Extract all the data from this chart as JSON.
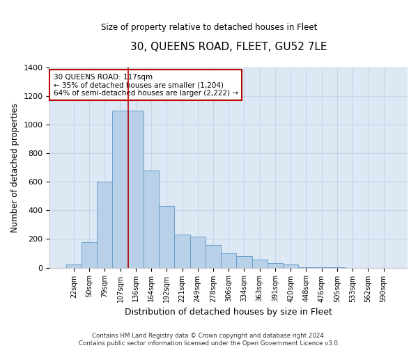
{
  "title": "30, QUEENS ROAD, FLEET, GU52 7LE",
  "subtitle": "Size of property relative to detached houses in Fleet",
  "xlabel": "Distribution of detached houses by size in Fleet",
  "ylabel": "Number of detached properties",
  "footer_line1": "Contains HM Land Registry data © Crown copyright and database right 2024.",
  "footer_line2": "Contains public sector information licensed under the Open Government Licence v3.0.",
  "annotation_line1": "30 QUEENS ROAD: 117sqm",
  "annotation_line2": "← 35% of detached houses are smaller (1,204)",
  "annotation_line3": "64% of semi-detached houses are larger (2,222) →",
  "bar_color": "#b8d0e8",
  "bar_edge_color": "#6aa0cc",
  "grid_color": "#c8d4e4",
  "background_color": "#dce8f4",
  "vline_color": "#bb0000",
  "annotation_box_edgecolor": "#bb0000",
  "categories": [
    "22sqm",
    "50sqm",
    "79sqm",
    "107sqm",
    "136sqm",
    "164sqm",
    "192sqm",
    "221sqm",
    "249sqm",
    "278sqm",
    "306sqm",
    "334sqm",
    "363sqm",
    "391sqm",
    "420sqm",
    "448sqm",
    "476sqm",
    "505sqm",
    "533sqm",
    "562sqm",
    "590sqm"
  ],
  "values": [
    20,
    180,
    600,
    1100,
    1100,
    680,
    430,
    230,
    215,
    160,
    100,
    80,
    55,
    30,
    20,
    5,
    2,
    1,
    0,
    0,
    0
  ],
  "vline_position": 3.5,
  "ylim": [
    0,
    1400
  ],
  "yticks": [
    0,
    200,
    400,
    600,
    800,
    1000,
    1200,
    1400
  ]
}
